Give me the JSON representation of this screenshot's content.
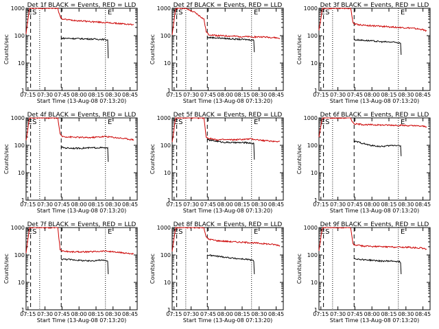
{
  "chart_data": [
    {
      "type": "line",
      "title": "Det 1f BLACK = Events, RED = LLD",
      "xlabel": "Start Time (13-Aug-08 07:13:20)",
      "ylabel": "Counts/sec",
      "yscale": "log",
      "ylim": [
        1,
        1000
      ],
      "x_ticks": [
        "07:15",
        "07:30",
        "07:45",
        "08:00",
        "08:15",
        "08:30",
        "08:45"
      ],
      "y_ticks": [
        "1",
        "10",
        "100",
        "1000"
      ],
      "markers": [
        "E",
        "S",
        "E"
      ],
      "series": [
        {
          "color": "#cc0000",
          "x_minutes": [
            0,
            3,
            7,
            11,
            22,
            28,
            30,
            32,
            40,
            55,
            70,
            80,
            90,
            95
          ],
          "y": [
            120,
            1000,
            1000,
            1000,
            1000,
            1000,
            500,
            400,
            370,
            330,
            300,
            280,
            260,
            250
          ]
        },
        {
          "color": "#000000",
          "x_minutes": [
            31,
            35,
            45,
            55,
            65,
            70,
            72,
            72.5
          ],
          "y": [
            80,
            80,
            78,
            76,
            74,
            72,
            70,
            15
          ]
        }
      ]
    },
    {
      "type": "line",
      "title": "Det 2f BLACK = Events, RED = LLD",
      "xlabel": "Start Time (13-Aug-08 07:13:20)",
      "ylabel": "Counts/sec",
      "yscale": "log",
      "ylim": [
        1,
        1000
      ],
      "x_ticks": [
        "07:15",
        "07:30",
        "07:45",
        "08:00",
        "08:15",
        "08:30",
        "08:45"
      ],
      "y_ticks": [
        "1",
        "10",
        "100",
        "1000"
      ],
      "markers": [
        "E",
        "S",
        "E"
      ],
      "series": [
        {
          "color": "#cc0000",
          "x_minutes": [
            0,
            3,
            7,
            11,
            20,
            28,
            30,
            32,
            40,
            55,
            70,
            80,
            90,
            95
          ],
          "y": [
            100,
            1000,
            1000,
            1000,
            700,
            400,
            140,
            110,
            100,
            95,
            90,
            90,
            85,
            80
          ]
        },
        {
          "color": "#000000",
          "x_minutes": [
            31,
            35,
            45,
            55,
            65,
            70,
            72,
            72.5
          ],
          "y": [
            85,
            85,
            80,
            75,
            72,
            70,
            68,
            25
          ]
        }
      ]
    },
    {
      "type": "line",
      "title": "Det 3f BLACK = Events, RED = LLD",
      "xlabel": "Start Time (13-Aug-08 07:13:20)",
      "ylabel": "Counts/sec",
      "yscale": "log",
      "ylim": [
        1,
        1000
      ],
      "x_ticks": [
        "07:15",
        "07:30",
        "07:45",
        "08:00",
        "08:15",
        "08:30",
        "08:45"
      ],
      "y_ticks": [
        "1",
        "10",
        "100",
        "1000"
      ],
      "markers": [
        "E",
        "S",
        "E"
      ],
      "series": [
        {
          "color": "#cc0000",
          "x_minutes": [
            0,
            3,
            7,
            11,
            22,
            28,
            30,
            32,
            40,
            55,
            70,
            80,
            90,
            95
          ],
          "y": [
            150,
            1000,
            1000,
            1000,
            1000,
            1000,
            300,
            260,
            240,
            220,
            200,
            190,
            170,
            150
          ]
        },
        {
          "color": "#000000",
          "x_minutes": [
            31,
            35,
            45,
            55,
            65,
            70,
            72,
            72.5
          ],
          "y": [
            70,
            70,
            65,
            60,
            58,
            55,
            55,
            20
          ]
        }
      ]
    },
    {
      "type": "line",
      "title": "Det 4f BLACK = Events, RED = LLD",
      "xlabel": "Start Time (13-Aug-08 07:13:20)",
      "ylabel": "Counts/sec",
      "yscale": "log",
      "ylim": [
        1,
        1000
      ],
      "x_ticks": [
        "07:15",
        "07:30",
        "07:45",
        "08:00",
        "08:15",
        "08:30",
        "08:45"
      ],
      "y_ticks": [
        "1",
        "10",
        "100",
        "1000"
      ],
      "markers": [
        "E",
        "S",
        "E"
      ],
      "series": [
        {
          "color": "#cc0000",
          "x_minutes": [
            0,
            3,
            7,
            11,
            22,
            28,
            30,
            32,
            40,
            55,
            70,
            80,
            90,
            95
          ],
          "y": [
            150,
            1000,
            1000,
            1000,
            1000,
            1000,
            250,
            210,
            200,
            190,
            210,
            190,
            170,
            160
          ]
        },
        {
          "color": "#000000",
          "x_minutes": [
            31,
            35,
            45,
            55,
            65,
            70,
            72,
            72.5
          ],
          "y": [
            85,
            80,
            78,
            80,
            82,
            80,
            78,
            25
          ]
        }
      ]
    },
    {
      "type": "line",
      "title": "Det 5f BLACK = Events, RED = LLD",
      "xlabel": "Start Time (13-Aug-08 07:13:20)",
      "ylabel": "Counts/sec",
      "yscale": "log",
      "ylim": [
        1,
        1000
      ],
      "x_ticks": [
        "07:15",
        "07:30",
        "07:45",
        "08:00",
        "08:15",
        "08:30",
        "08:45"
      ],
      "y_ticks": [
        "1",
        "10",
        "100",
        "1000"
      ],
      "markers": [
        "E",
        "S",
        "E"
      ],
      "series": [
        {
          "color": "#cc0000",
          "x_minutes": [
            0,
            3,
            7,
            11,
            22,
            28,
            30,
            32,
            40,
            55,
            70,
            80,
            90,
            95
          ],
          "y": [
            130,
            1000,
            1000,
            1000,
            1000,
            1000,
            200,
            180,
            160,
            160,
            170,
            150,
            140,
            140
          ]
        },
        {
          "color": "#000000",
          "x_minutes": [
            31,
            35,
            45,
            55,
            65,
            70,
            72,
            72.5
          ],
          "y": [
            160,
            150,
            130,
            125,
            125,
            120,
            115,
            30
          ]
        }
      ]
    },
    {
      "type": "line",
      "title": "Det 6f BLACK = Events, RED = LLD",
      "xlabel": "Start Time (13-Aug-08 07:13:20)",
      "ylabel": "Counts/sec",
      "yscale": "log",
      "ylim": [
        1,
        1000
      ],
      "x_ticks": [
        "07:15",
        "07:30",
        "07:45",
        "08:00",
        "08:15",
        "08:30",
        "08:45"
      ],
      "y_ticks": [
        "1",
        "10",
        "100",
        "1000"
      ],
      "markers": [
        "E",
        "S",
        "E"
      ],
      "series": [
        {
          "color": "#cc0000",
          "x_minutes": [
            0,
            3,
            7,
            11,
            22,
            28,
            30,
            32,
            40,
            55,
            70,
            80,
            90,
            95
          ],
          "y": [
            200,
            1000,
            1000,
            1000,
            1000,
            1000,
            650,
            600,
            570,
            550,
            540,
            520,
            500,
            480
          ]
        },
        {
          "color": "#000000",
          "x_minutes": [
            31,
            35,
            45,
            55,
            65,
            70,
            72,
            72.5
          ],
          "y": [
            140,
            130,
            100,
            90,
            100,
            100,
            95,
            40
          ]
        }
      ]
    },
    {
      "type": "line",
      "title": "Det 7f BLACK = Events, RED = LLD",
      "xlabel": "Start Time (13-Aug-08 07:13:20)",
      "ylabel": "Counts/sec",
      "yscale": "log",
      "ylim": [
        1,
        1000
      ],
      "x_ticks": [
        "07:15",
        "07:30",
        "07:45",
        "08:00",
        "08:15",
        "08:30",
        "08:45"
      ],
      "y_ticks": [
        "1",
        "10",
        "100",
        "1000"
      ],
      "markers": [
        "E",
        "S",
        "E"
      ],
      "series": [
        {
          "color": "#cc0000",
          "x_minutes": [
            0,
            3,
            7,
            11,
            22,
            28,
            30,
            32,
            40,
            55,
            70,
            80,
            90,
            95
          ],
          "y": [
            120,
            1000,
            1000,
            1000,
            1000,
            1000,
            160,
            140,
            130,
            130,
            140,
            125,
            115,
            110
          ]
        },
        {
          "color": "#000000",
          "x_minutes": [
            31,
            35,
            45,
            55,
            65,
            70,
            72,
            72.5
          ],
          "y": [
            70,
            70,
            65,
            60,
            65,
            62,
            60,
            20
          ]
        }
      ]
    },
    {
      "type": "line",
      "title": "Det 8f BLACK = Events, RED = LLD",
      "xlabel": "Start Time (13-Aug-08 07:13:20)",
      "ylabel": "Counts/sec",
      "yscale": "log",
      "ylim": [
        1,
        1000
      ],
      "x_ticks": [
        "07:15",
        "07:30",
        "07:45",
        "08:00",
        "08:15",
        "08:30",
        "08:45"
      ],
      "y_ticks": [
        "1",
        "10",
        "100",
        "1000"
      ],
      "markers": [
        "E",
        "S",
        "E"
      ],
      "series": [
        {
          "color": "#cc0000",
          "x_minutes": [
            0,
            3,
            7,
            11,
            22,
            28,
            30,
            32,
            40,
            55,
            70,
            80,
            90,
            95
          ],
          "y": [
            140,
            1000,
            1000,
            1000,
            1000,
            1000,
            450,
            380,
            330,
            300,
            280,
            260,
            240,
            220
          ]
        },
        {
          "color": "#000000",
          "x_minutes": [
            31,
            35,
            45,
            55,
            65,
            70,
            72,
            72.5
          ],
          "y": [
            100,
            95,
            85,
            75,
            70,
            65,
            60,
            20
          ]
        }
      ]
    },
    {
      "type": "line",
      "title": "Det 9f BLACK = Events, RED = LLD",
      "xlabel": "Start Time (13-Aug-08 07:13:20)",
      "ylabel": "Counts/sec",
      "yscale": "log",
      "ylim": [
        1,
        1000
      ],
      "x_ticks": [
        "07:15",
        "07:30",
        "07:45",
        "08:00",
        "08:15",
        "08:30",
        "08:45"
      ],
      "y_ticks": [
        "1",
        "10",
        "100",
        "1000"
      ],
      "markers": [
        "E",
        "S",
        "E"
      ],
      "series": [
        {
          "color": "#cc0000",
          "x_minutes": [
            0,
            3,
            7,
            11,
            22,
            28,
            30,
            32,
            40,
            55,
            70,
            80,
            90,
            95
          ],
          "y": [
            150,
            1000,
            1000,
            1000,
            1000,
            1000,
            250,
            230,
            210,
            200,
            195,
            190,
            180,
            160
          ]
        },
        {
          "color": "#000000",
          "x_minutes": [
            31,
            35,
            45,
            55,
            65,
            70,
            72,
            72.5
          ],
          "y": [
            75,
            70,
            65,
            60,
            60,
            58,
            55,
            20
          ]
        }
      ]
    }
  ],
  "event_lines": {
    "dashed_minutes": [
      4,
      31
    ],
    "dotted_minutes": [
      12,
      70
    ]
  }
}
